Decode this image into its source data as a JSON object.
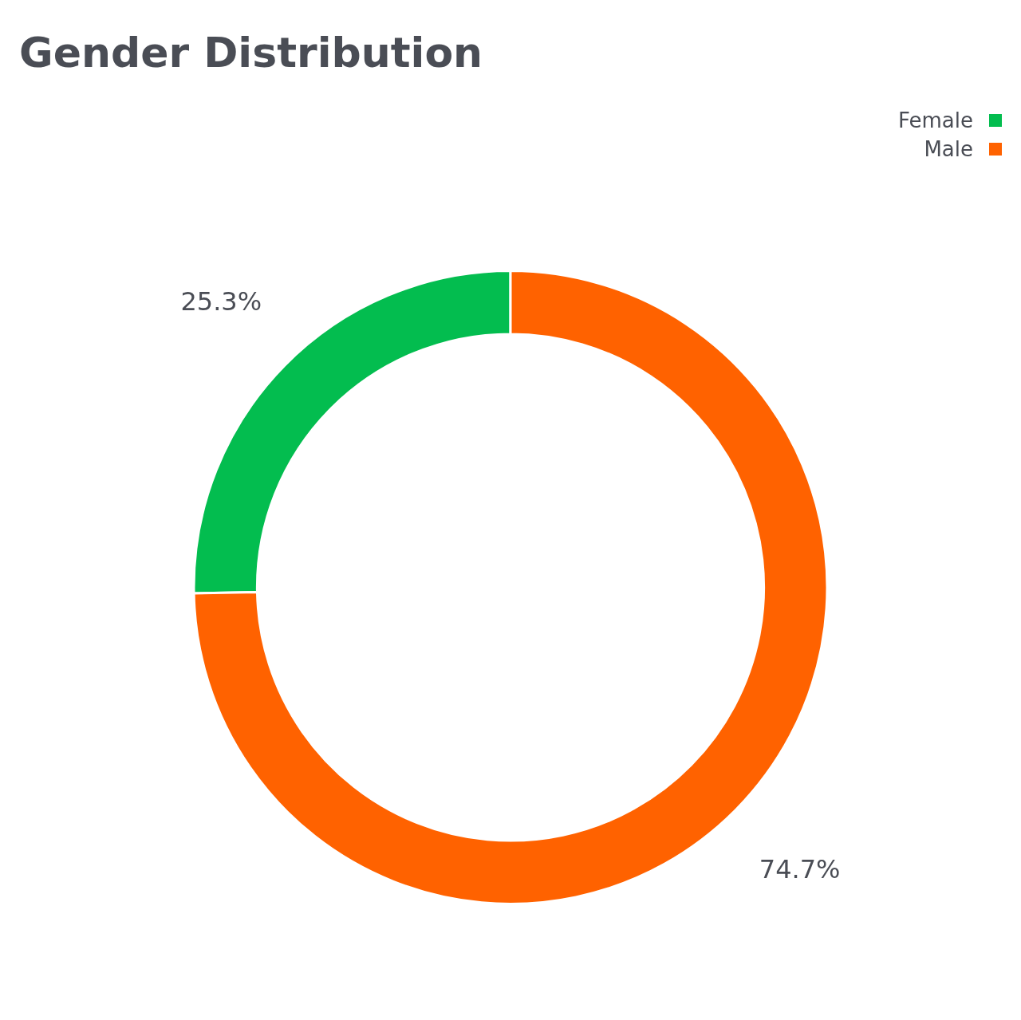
{
  "chart_data": {
    "type": "donut",
    "title": "Gender Distribution",
    "categories": [
      "Female",
      "Male"
    ],
    "values": [
      25.3,
      74.7
    ],
    "colors": [
      "#03bd4f",
      "#ff6200"
    ],
    "value_labels": [
      "25.3%",
      "74.7%"
    ],
    "legend": "top right"
  }
}
